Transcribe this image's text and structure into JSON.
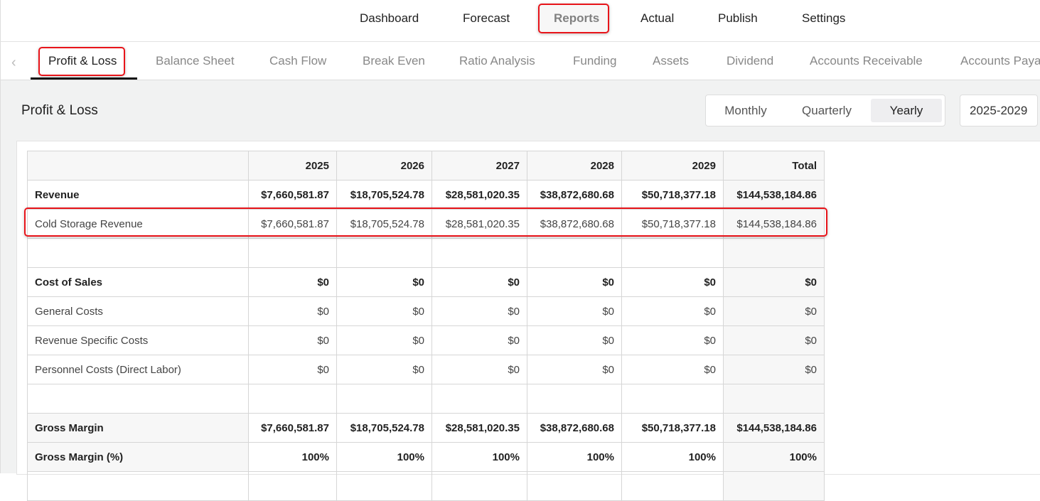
{
  "topnav": {
    "items": [
      "Dashboard",
      "Forecast",
      "Reports",
      "Actual",
      "Publish",
      "Settings"
    ],
    "active": "Reports"
  },
  "subnav": {
    "tabs": [
      "Profit & Loss",
      "Balance Sheet",
      "Cash Flow",
      "Break Even",
      "Ratio Analysis",
      "Funding",
      "Assets",
      "Dividend",
      "Accounts Receivable",
      "Accounts Payable"
    ],
    "active": "Profit & Loss"
  },
  "page": {
    "title": "Profit & Loss",
    "periods": [
      "Monthly",
      "Quarterly",
      "Yearly"
    ],
    "selected_period": "Yearly",
    "range": "2025-2029"
  },
  "table": {
    "headers": [
      "",
      "2025",
      "2026",
      "2027",
      "2028",
      "2029",
      "Total"
    ],
    "rows": [
      {
        "style": "bold",
        "cells": [
          "Revenue",
          "$7,660,581.87",
          "$18,705,524.78",
          "$28,581,020.35",
          "$38,872,680.68",
          "$50,718,377.18",
          "$144,538,184.86"
        ]
      },
      {
        "style": "normal",
        "highlight": true,
        "cells": [
          "Cold Storage Revenue",
          "$7,660,581.87",
          "$18,705,524.78",
          "$28,581,020.35",
          "$38,872,680.68",
          "$50,718,377.18",
          "$144,538,184.86"
        ]
      },
      {
        "style": "empty",
        "cells": [
          "",
          "",
          "",
          "",
          "",
          "",
          ""
        ]
      },
      {
        "style": "bold",
        "cells": [
          "Cost of Sales",
          "$0",
          "$0",
          "$0",
          "$0",
          "$0",
          "$0"
        ]
      },
      {
        "style": "normal",
        "cells": [
          "General Costs",
          "$0",
          "$0",
          "$0",
          "$0",
          "$0",
          "$0"
        ]
      },
      {
        "style": "normal",
        "cells": [
          "Revenue Specific Costs",
          "$0",
          "$0",
          "$0",
          "$0",
          "$0",
          "$0"
        ]
      },
      {
        "style": "normal",
        "cells": [
          "Personnel Costs (Direct Labor)",
          "$0",
          "$0",
          "$0",
          "$0",
          "$0",
          "$0"
        ]
      },
      {
        "style": "empty",
        "cells": [
          "",
          "",
          "",
          "",
          "",
          "",
          ""
        ]
      },
      {
        "style": "bold shade",
        "cells": [
          "Gross Margin",
          "$7,660,581.87",
          "$18,705,524.78",
          "$28,581,020.35",
          "$38,872,680.68",
          "$50,718,377.18",
          "$144,538,184.86"
        ]
      },
      {
        "style": "bold shade",
        "cells": [
          "Gross Margin (%)",
          "100%",
          "100%",
          "100%",
          "100%",
          "100%",
          "100%"
        ]
      },
      {
        "style": "empty",
        "cells": [
          "",
          "",
          "",
          "",
          "",
          "",
          ""
        ]
      }
    ]
  },
  "colors": {
    "highlight": "#e8141a"
  }
}
